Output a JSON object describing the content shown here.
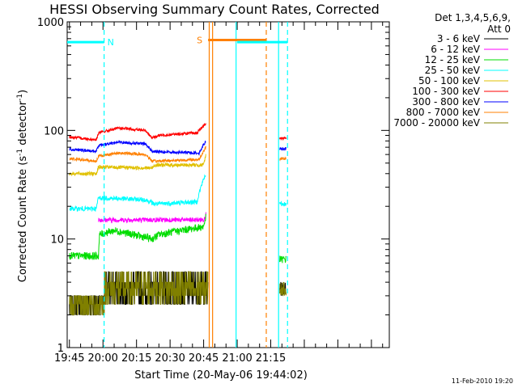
{
  "chart_data": {
    "type": "line",
    "title": "HESSI Observing Summary Count Rates, Corrected",
    "xlabel": "Start Time (20-May-06 19:44:02)",
    "ylabel": "Corrected Count Rate (s",
    "ylabel_sup": "-1",
    "ylabel_mid": " detector",
    "ylabel_end": ")",
    "y_scale": "log",
    "ylim": [
      1,
      1000
    ],
    "xlim_minutes": [
      -1,
      143
    ],
    "x_origin": "19:45",
    "x_ticks": [
      {
        "min": 0,
        "label": "19:45"
      },
      {
        "min": 15,
        "label": "20:00"
      },
      {
        "min": 30,
        "label": "20:15"
      },
      {
        "min": 45,
        "label": "20:30"
      },
      {
        "min": 60,
        "label": "20:45"
      },
      {
        "min": 75,
        "label": "21:00"
      },
      {
        "min": 90,
        "label": "21:15"
      }
    ],
    "y_ticks": [
      {
        "v": 1,
        "label": "1"
      },
      {
        "v": 10,
        "label": "10"
      },
      {
        "v": 100,
        "label": "100"
      },
      {
        "v": 1000,
        "label": "1000"
      }
    ],
    "legend_header": [
      "Det 1,3,4,5,6,9,",
      "Att 0"
    ],
    "legend_position": "right",
    "series": [
      {
        "name": "3 - 6 keV",
        "color": "#000000",
        "level": 2.5,
        "noise": 0.35
      },
      {
        "name": "6 - 12 keV",
        "color": "#ff00ff",
        "level": 15,
        "noise": 0.05
      },
      {
        "name": "12 - 25 keV",
        "color": "#00dd00",
        "level": 11,
        "noise": 0.08
      },
      {
        "name": "25 - 50 keV",
        "color": "#00ffff",
        "level": 23,
        "noise": 0.05
      },
      {
        "name": "50 - 100 keV",
        "color": "#e0c000",
        "level": 46,
        "noise": 0.04
      },
      {
        "name": "100 - 300 keV",
        "color": "#ff0000",
        "level": 100,
        "noise": 0.03
      },
      {
        "name": "300 - 800 keV",
        "color": "#0000ff",
        "level": 70,
        "noise": 0.03
      },
      {
        "name": "800 - 7000 keV",
        "color": "#ff8000",
        "level": 55,
        "noise": 0.03
      },
      {
        "name": "7000 - 20000 keV",
        "color": "#808000",
        "level": 3.5,
        "noise": 0.3
      }
    ],
    "profiles": {
      "3 - 6 keV": [
        [
          0,
          2.5
        ],
        [
          11,
          2.5
        ],
        [
          15,
          2.5
        ],
        [
          17,
          4
        ],
        [
          60,
          4
        ],
        [
          62,
          3
        ]
      ],
      "6 - 12 keV": [
        [
          13,
          15
        ],
        [
          60,
          15
        ],
        [
          61,
          17
        ]
      ],
      "12 - 25 keV": [
        [
          0,
          7
        ],
        [
          13,
          7
        ],
        [
          13.5,
          11
        ],
        [
          20,
          12
        ],
        [
          37,
          10
        ],
        [
          40,
          11
        ],
        [
          60,
          13
        ],
        [
          61,
          16
        ]
      ],
      "25 - 50 keV": [
        [
          0,
          19
        ],
        [
          12,
          19
        ],
        [
          13,
          24
        ],
        [
          34,
          23
        ],
        [
          38,
          21
        ],
        [
          57,
          22
        ],
        [
          61,
          40
        ]
      ],
      "50 - 100 keV": [
        [
          0,
          40
        ],
        [
          12,
          40
        ],
        [
          13,
          46
        ],
        [
          37,
          45
        ],
        [
          38,
          48
        ],
        [
          60,
          48
        ],
        [
          61,
          60
        ]
      ],
      "100 - 300 keV": [
        [
          0,
          87
        ],
        [
          12,
          82
        ],
        [
          13,
          95
        ],
        [
          22,
          105
        ],
        [
          34,
          100
        ],
        [
          37,
          85
        ],
        [
          40,
          90
        ],
        [
          57,
          95
        ],
        [
          61,
          115
        ]
      ],
      "300 - 800 keV": [
        [
          0,
          67
        ],
        [
          12,
          64
        ],
        [
          13,
          73
        ],
        [
          22,
          78
        ],
        [
          34,
          75
        ],
        [
          37,
          64
        ],
        [
          58,
          62
        ],
        [
          61,
          80
        ]
      ],
      "800 - 7000 keV": [
        [
          0,
          55
        ],
        [
          12,
          52
        ],
        [
          13,
          58
        ],
        [
          22,
          62
        ],
        [
          34,
          60
        ],
        [
          37,
          52
        ],
        [
          58,
          54
        ],
        [
          61,
          70
        ]
      ],
      "7000 - 20000 keV": [
        [
          0,
          2.5
        ],
        [
          15,
          2.5
        ],
        [
          17,
          4
        ],
        [
          60,
          4
        ],
        [
          62,
          3
        ]
      ]
    },
    "segment2": {
      "start_min": 94,
      "end_min": 97,
      "values": {
        "3 - 6 keV": 3.5,
        "6 - 12 keV": 0,
        "12 - 25 keV": 6.5,
        "25 - 50 keV": 21,
        "50 - 100 keV": 0,
        "100 - 300 keV": 85,
        "300 - 800 keV": 68,
        "800 - 7000 keV": 55,
        "7000 - 20000 keV": 3.5
      }
    },
    "markers": [
      {
        "label": "N",
        "color": "#00ffff",
        "level": 650,
        "start_min": -1,
        "end_min": 15.5,
        "dash_at_min": 15.5
      },
      {
        "label": "S",
        "color": "#ff8000",
        "level": 680,
        "start_min": 62,
        "end_min": 88,
        "dash_at_min": 88
      }
    ],
    "vertical_lines": [
      {
        "min": 62.5,
        "color": "#ff8000",
        "style": "solid"
      },
      {
        "min": 64,
        "color": "#ff8000",
        "style": "solid"
      },
      {
        "min": 74.5,
        "color": "#00ffff",
        "style": "solid"
      },
      {
        "min": 88,
        "color": "#ff8000",
        "style": "dashed"
      },
      {
        "min": 93.5,
        "color": "#00ffff",
        "style": "solid"
      },
      {
        "min": 97.5,
        "color": "#00ffff",
        "style": "dashed"
      },
      {
        "min": 15.5,
        "color": "#00ffff",
        "style": "dashed"
      }
    ],
    "cyan_bar_2": {
      "start_min": 75,
      "end_min": 97.5,
      "level": 650
    },
    "footer_timestamp": "11-Feb-2010 19:20"
  }
}
